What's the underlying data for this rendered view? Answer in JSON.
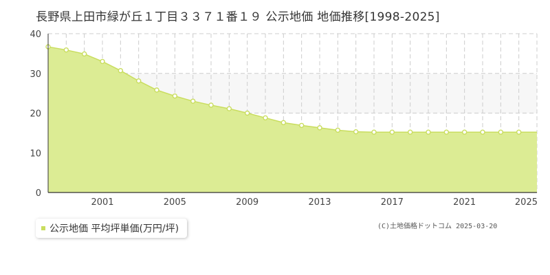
{
  "colors": {
    "fill": "#dcec94",
    "line": "#c9dd5e",
    "point_stroke": "#c9dd5e",
    "point_fill": "#ffffff",
    "grid": "#cccccc",
    "band": "#f7f7f7"
  },
  "chart_data": {
    "type": "area",
    "title": "長野県上田市緑が丘１丁目３３７１番１９ 公示地価 地価推移[1998-2025]",
    "x": [
      1998,
      1999,
      2000,
      2001,
      2002,
      2003,
      2004,
      2005,
      2006,
      2007,
      2008,
      2009,
      2010,
      2011,
      2012,
      2013,
      2014,
      2015,
      2016,
      2017,
      2018,
      2019,
      2020,
      2021,
      2022,
      2023,
      2024,
      2025
    ],
    "series": [
      {
        "name": "公示地価 平均坪単価(万円/坪)",
        "values": [
          36.7,
          35.9,
          34.9,
          33.0,
          30.7,
          28.1,
          25.8,
          24.3,
          23.0,
          22.0,
          21.1,
          20.0,
          18.8,
          17.6,
          16.9,
          16.3,
          15.7,
          15.3,
          15.2,
          15.2,
          15.2,
          15.2,
          15.2,
          15.2,
          15.2,
          15.2,
          15.2,
          15.2
        ]
      }
    ],
    "x_tick_labels": [
      "2001",
      "2005",
      "2009",
      "2013",
      "2017",
      "2021",
      "2025"
    ],
    "x_tick_values": [
      2001,
      2005,
      2009,
      2013,
      2017,
      2021,
      2025
    ],
    "y_tick_labels": [
      "0",
      "10",
      "20",
      "30",
      "40"
    ],
    "y_tick_values": [
      0,
      10,
      20,
      30,
      40
    ],
    "xlim": [
      1998,
      2025
    ],
    "ylim": [
      0,
      40
    ],
    "grid": true,
    "legend_position": "bottom-left"
  },
  "legend": {
    "label": "公示地価 平均坪単価(万円/坪)"
  },
  "copyright": "(C)土地価格ドットコム 2025-03-20"
}
